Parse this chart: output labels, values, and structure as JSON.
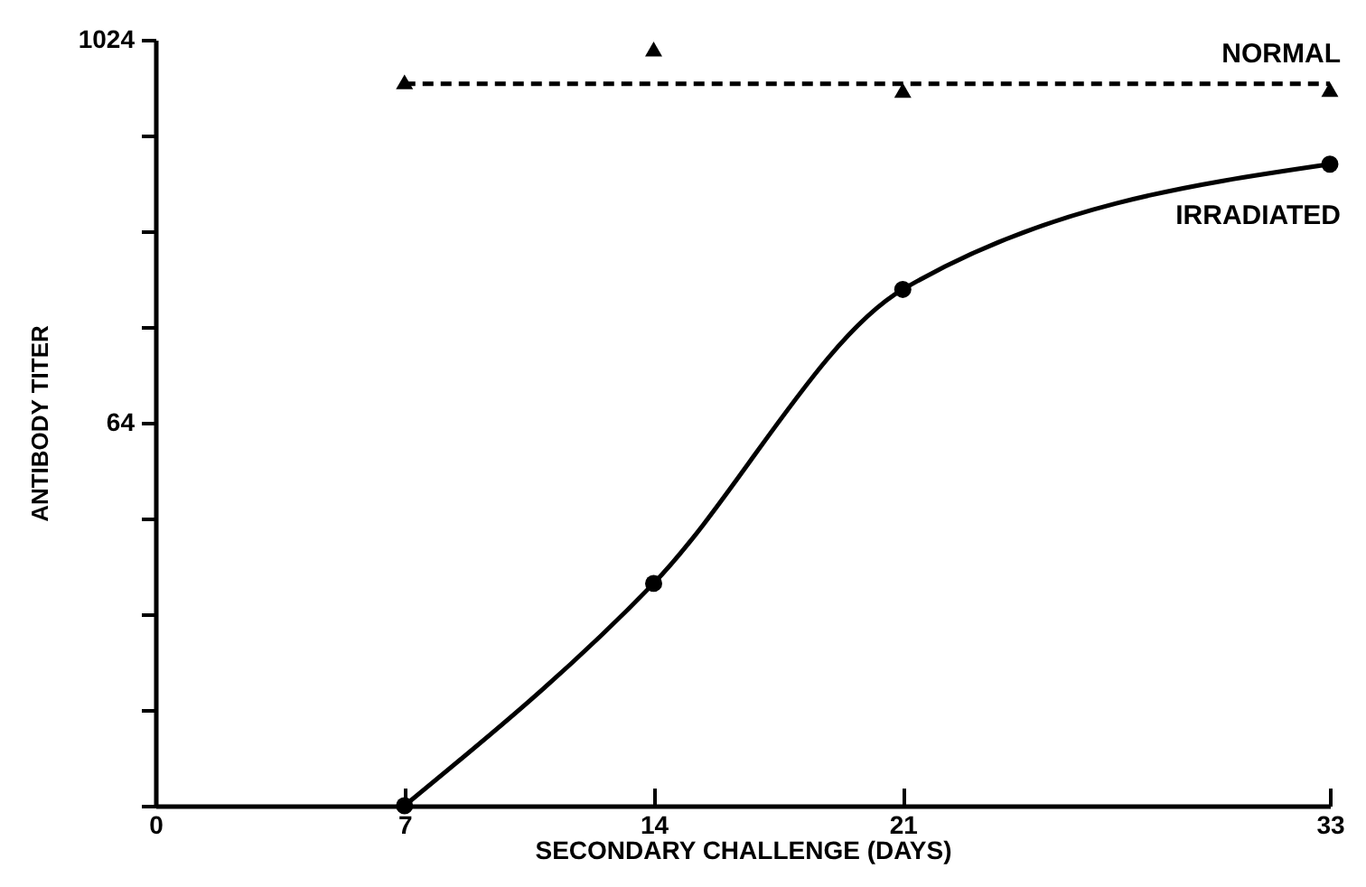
{
  "chart_data": {
    "type": "line",
    "xlabel": "SECONDARY CHALLENGE  (DAYS)",
    "ylabel": "ANTIBODY TITER",
    "x": [
      7,
      14,
      21,
      33
    ],
    "series": [
      {
        "name": "NORMAL",
        "type": "scatter",
        "marker": "triangle",
        "color": "#000000",
        "values": [
          755,
          958,
          710,
          715
        ]
      },
      {
        "type": "line",
        "line_style": "dashed",
        "marker": "none",
        "color": "#000000",
        "x": [
          7,
          33
        ],
        "values": [
          745,
          745
        ]
      },
      {
        "name": "IRRADIATED",
        "line_style": "solid",
        "marker": "circle",
        "color": "#000000",
        "values": [
          4,
          20,
          168,
          416
        ]
      }
    ],
    "xlim": [
      0,
      33
    ],
    "xticks": [
      0,
      7,
      14,
      21,
      33
    ],
    "ylim": [
      4,
      1024
    ],
    "yticks": [
      {
        "value": 4,
        "label": null
      },
      {
        "value": 8,
        "label": null
      },
      {
        "value": 16,
        "label": null
      },
      {
        "value": 32,
        "label": null
      },
      64,
      {
        "value": 128,
        "label": null
      },
      {
        "value": 256,
        "label": null
      },
      {
        "value": 512,
        "label": null
      },
      1024
    ],
    "log": "y",
    "grid": false,
    "legend": false
  }
}
